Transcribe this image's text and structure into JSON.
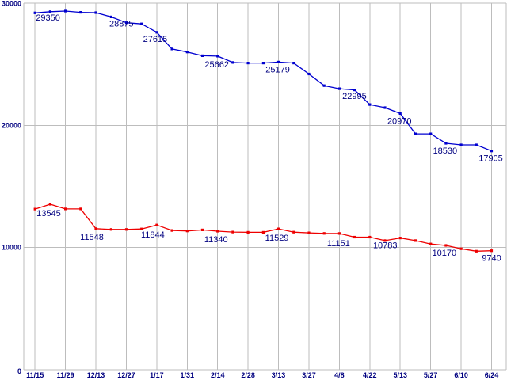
{
  "chart_data": {
    "type": "line",
    "title": "",
    "xlabel": "",
    "ylabel": "",
    "ylim": [
      0,
      30000
    ],
    "grid": true,
    "y_tick_labels": [
      "30000",
      "20000",
      "10000",
      "0"
    ],
    "y_tick_values": [
      30000,
      20000,
      10000,
      0
    ],
    "x_tick_labels": [
      "11/15",
      "11/29",
      "12/13",
      "12/27",
      "1/17",
      "1/31",
      "2/14",
      "2/28",
      "3/13",
      "3/27",
      "4/8",
      "4/22",
      "5/13",
      "5/27",
      "6/10",
      "6/24"
    ],
    "points_per_interval": 2,
    "colors": {
      "background": "#ffffff",
      "grid": "#bdbdbd",
      "text": "#000080"
    },
    "series": [
      {
        "name": "upper-blue-series",
        "color": "#0000d0",
        "values": [
          29200,
          29300,
          29350,
          29250,
          29220,
          28875,
          28400,
          28300,
          27615,
          26250,
          26000,
          25700,
          25662,
          25150,
          25100,
          25100,
          25179,
          25100,
          24200,
          23250,
          22995,
          22900,
          21700,
          21450,
          20970,
          19300,
          19300,
          18530,
          18400,
          18400,
          17905
        ],
        "point_labels": [
          {
            "i": 2,
            "text": "29350",
            "dx": -22,
            "dy": 9
          },
          {
            "i": 5,
            "text": "28875",
            "dx": 13,
            "dy": 9
          },
          {
            "i": 8,
            "text": "27615",
            "dx": -2,
            "dy": 9
          },
          {
            "i": 12,
            "text": "25662",
            "dx": -1,
            "dy": 11
          },
          {
            "i": 16,
            "text": "25179",
            "dx": -1,
            "dy": 10
          },
          {
            "i": 20,
            "text": "22995",
            "dx": 19,
            "dy": 10
          },
          {
            "i": 24,
            "text": "20970",
            "dx": -1,
            "dy": 10
          },
          {
            "i": 27,
            "text": "18530",
            "dx": -1,
            "dy": 10
          },
          {
            "i": 30,
            "text": "17905",
            "dx": -1,
            "dy": 10
          }
        ]
      },
      {
        "name": "lower-red-series",
        "color": "#ee0000",
        "values": [
          13150,
          13545,
          13160,
          13160,
          11548,
          11480,
          11480,
          11520,
          11844,
          11400,
          11360,
          11440,
          11340,
          11270,
          11250,
          11250,
          11529,
          11260,
          11200,
          11160,
          11151,
          10850,
          10850,
          10570,
          10783,
          10570,
          10290,
          10170,
          9900,
          9700,
          9740
        ],
        "point_labels": [
          {
            "i": 1,
            "text": "13545",
            "dx": -2,
            "dy": 12
          },
          {
            "i": 4,
            "text": "11548",
            "dx": -5,
            "dy": 11
          },
          {
            "i": 8,
            "text": "11844",
            "dx": -5,
            "dy": 13
          },
          {
            "i": 12,
            "text": "11340",
            "dx": -2,
            "dy": 11
          },
          {
            "i": 16,
            "text": "11529",
            "dx": -2,
            "dy": 12
          },
          {
            "i": 20,
            "text": "11151",
            "dx": -1,
            "dy": 13
          },
          {
            "i": 24,
            "text": "10783",
            "dx": -19,
            "dy": 10
          },
          {
            "i": 27,
            "text": "10170",
            "dx": -2,
            "dy": 10
          },
          {
            "i": 30,
            "text": "9740",
            "dx": 0,
            "dy": 10
          }
        ]
      }
    ]
  }
}
